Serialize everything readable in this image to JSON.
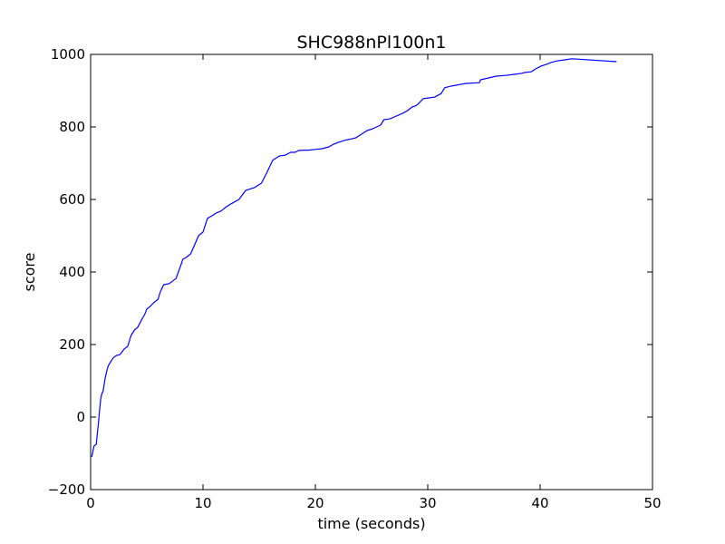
{
  "chart_data": {
    "type": "line",
    "title": "SHC988nPl100n1",
    "xlabel": "time (seconds)",
    "ylabel": "score",
    "xlim": [
      0,
      50
    ],
    "ylim": [
      -200,
      1000
    ],
    "x_ticks": [
      "0",
      "10",
      "20",
      "30",
      "40",
      "50"
    ],
    "y_ticks": [
      "−200",
      "0",
      "200",
      "400",
      "600",
      "800",
      "1000"
    ],
    "x_tick_values": [
      0,
      10,
      20,
      30,
      40,
      50
    ],
    "y_tick_values": [
      -200,
      0,
      200,
      400,
      600,
      800,
      1000
    ],
    "grid": false,
    "series": [
      {
        "color": "#0000ff",
        "x": [
          0.1,
          0.3,
          0.5,
          0.6,
          0.7,
          0.8,
          0.9,
          1.0,
          1.1,
          1.3,
          1.5,
          1.6,
          1.8,
          2.0,
          2.3,
          2.6,
          3.0,
          3.3,
          3.6,
          3.9,
          4.2,
          4.6,
          4.8,
          5.0,
          5.3,
          5.6,
          6.0,
          6.2,
          6.5,
          7.0,
          7.6,
          8.1,
          8.2,
          8.5,
          8.9,
          9.3,
          9.6,
          10.0,
          10.4,
          10.8,
          11.2,
          11.6,
          12.0,
          12.5,
          13.2,
          13.8,
          14.1,
          14.6,
          15.2,
          15.7,
          16.2,
          16.8,
          17.3,
          17.8,
          18.2,
          18.5,
          19.0,
          19.4,
          20.0,
          20.6,
          21.2,
          21.6,
          22.0,
          22.6,
          23.2,
          23.6,
          24.1,
          24.6,
          25.1,
          25.8,
          26.1,
          26.6,
          27.2,
          27.8,
          28.2,
          28.6,
          28.9,
          29.1,
          29.6,
          30.1,
          30.6,
          31.2,
          31.5,
          32.0,
          32.5,
          33.4,
          34.6,
          34.7,
          35.4,
          36.1,
          36.9,
          37.7,
          38.4,
          38.6,
          39.2,
          39.6,
          40.1,
          40.6,
          41.0,
          41.5,
          42.2,
          42.8,
          46.8
        ],
        "y": [
          -110,
          -80,
          -75,
          -45,
          -15,
          20,
          50,
          65,
          70,
          108,
          135,
          143,
          153,
          163,
          170,
          172,
          188,
          195,
          225,
          240,
          248,
          272,
          282,
          298,
          305,
          315,
          325,
          345,
          365,
          368,
          382,
          425,
          435,
          440,
          450,
          478,
          500,
          510,
          548,
          555,
          563,
          568,
          578,
          588,
          600,
          625,
          628,
          633,
          645,
          675,
          708,
          720,
          722,
          730,
          730,
          735,
          736,
          736,
          738,
          740,
          745,
          752,
          757,
          763,
          767,
          770,
          780,
          790,
          795,
          805,
          820,
          822,
          830,
          838,
          845,
          855,
          858,
          862,
          878,
          880,
          882,
          892,
          908,
          912,
          915,
          920,
          922,
          930,
          935,
          940,
          942,
          945,
          948,
          950,
          952,
          960,
          968,
          973,
          978,
          982,
          985,
          988,
          980
        ]
      }
    ]
  }
}
